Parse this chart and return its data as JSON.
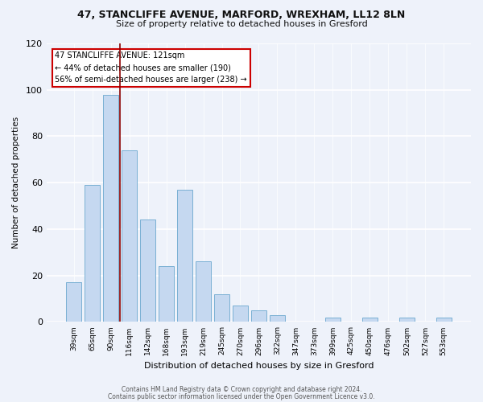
{
  "title1": "47, STANCLIFFE AVENUE, MARFORD, WREXHAM, LL12 8LN",
  "title2": "Size of property relative to detached houses in Gresford",
  "xlabel": "Distribution of detached houses by size in Gresford",
  "ylabel": "Number of detached properties",
  "bin_labels": [
    "39sqm",
    "65sqm",
    "90sqm",
    "116sqm",
    "142sqm",
    "168sqm",
    "193sqm",
    "219sqm",
    "245sqm",
    "270sqm",
    "296sqm",
    "322sqm",
    "347sqm",
    "373sqm",
    "399sqm",
    "425sqm",
    "450sqm",
    "476sqm",
    "502sqm",
    "527sqm",
    "553sqm"
  ],
  "bar_heights": [
    17,
    59,
    98,
    74,
    44,
    24,
    57,
    26,
    12,
    7,
    5,
    3,
    0,
    0,
    2,
    0,
    2,
    0,
    2,
    0,
    2
  ],
  "bar_color": "#c5d8f0",
  "bar_edge_color": "#7ab0d4",
  "annotation_title": "47 STANCLIFFE AVENUE: 121sqm",
  "annotation_line1": "← 44% of detached houses are smaller (190)",
  "annotation_line2": "56% of semi-detached houses are larger (238) →",
  "annotation_box_color": "#ffffff",
  "annotation_box_edge": "#cc0000",
  "vline_color": "#8b0000",
  "ylim": [
    0,
    120
  ],
  "yticks": [
    0,
    20,
    40,
    60,
    80,
    100,
    120
  ],
  "footer1": "Contains HM Land Registry data © Crown copyright and database right 2024.",
  "footer2": "Contains public sector information licensed under the Open Government Licence v3.0.",
  "bg_color": "#eef2fa"
}
